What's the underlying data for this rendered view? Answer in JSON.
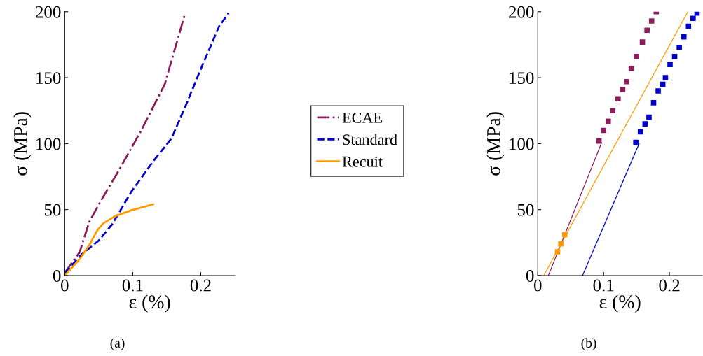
{
  "chart_data": [
    {
      "type": "line",
      "xlabel": "ε (%)",
      "ylabel": "σ (MPa)",
      "xlim": [
        0,
        0.25
      ],
      "ylim": [
        0,
        200
      ],
      "xticks": [
        0,
        0.1,
        0.2
      ],
      "yticks": [
        0,
        50,
        100,
        150,
        200
      ],
      "grid": false,
      "legend": "right",
      "annotations": [
        "(a)"
      ],
      "series": [
        {
          "name": "ECAE",
          "color": "#8b1f5e",
          "line_style": "dashdot",
          "x": [
            0,
            0.022,
            0.036,
            0.053,
            0.081,
            0.112,
            0.147,
            0.176
          ],
          "values": [
            2,
            17.7,
            40.6,
            56.5,
            81,
            109.5,
            145,
            197
          ]
        },
        {
          "name": "Standard",
          "color": "#0000cc",
          "line_style": "dashed",
          "x": [
            0,
            0.025,
            0.05,
            0.07,
            0.098,
            0.13,
            0.157,
            0.178,
            0.202,
            0.227,
            0.241
          ],
          "values": [
            2,
            16,
            26.5,
            39,
            63.6,
            86.5,
            104,
            129,
            159,
            189,
            199
          ]
        },
        {
          "name": "Recuit",
          "color": "#ff9900",
          "line_style": "solid",
          "x": [
            0,
            0.022,
            0.036,
            0.048,
            0.057,
            0.074,
            0.098,
            0.13
          ],
          "values": [
            0,
            12.4,
            23,
            34.4,
            39.7,
            45,
            49.5,
            54
          ]
        }
      ]
    },
    {
      "type": "line",
      "xlabel": "ε (%)",
      "ylabel": "σ (MPa)",
      "xlim": [
        0,
        0.25
      ],
      "ylim": [
        0,
        200
      ],
      "xticks": [
        0,
        0.1,
        0.2
      ],
      "yticks": [
        0,
        50,
        100,
        150,
        200
      ],
      "grid": false,
      "annotations": [
        "(b)"
      ],
      "series": [
        {
          "color": "#8b1f5e",
          "type": "scatter",
          "marker": "square",
          "x": [
            0.093,
            0.1,
            0.107,
            0.114,
            0.122,
            0.129,
            0.135,
            0.142,
            0.15,
            0.159,
            0.166,
            0.173,
            0.18
          ],
          "values": [
            102,
            110,
            117,
            125,
            134,
            141,
            147,
            157,
            166,
            177,
            186,
            193,
            200
          ]
        },
        {
          "color": "#0000cc",
          "type": "scatter",
          "marker": "square",
          "x": [
            0.149,
            0.156,
            0.163,
            0.169,
            0.176,
            0.183,
            0.19,
            0.194,
            0.201,
            0.208,
            0.215,
            0.222,
            0.229,
            0.236,
            0.242
          ],
          "values": [
            101,
            109,
            115,
            120,
            131,
            140,
            145,
            150,
            160,
            166,
            173,
            181,
            189,
            195,
            199
          ]
        },
        {
          "color": "#ff9900",
          "type": "scatter",
          "marker": "square",
          "x": [
            0.03,
            0.035,
            0.041
          ],
          "values": [
            18,
            24,
            31
          ]
        },
        {
          "color": "#8b1f5e",
          "type": "line",
          "line_style": "solid",
          "x": [
            0.016,
            0.097
          ],
          "values": [
            0,
            100.7
          ]
        },
        {
          "color": "#0000cc",
          "type": "line",
          "line_style": "solid",
          "x": [
            0.068,
            0.154
          ],
          "values": [
            0,
            100
          ]
        },
        {
          "color": "#ff9900",
          "type": "line",
          "line_style": "solid",
          "x": [
            0.009,
            0.228
          ],
          "values": [
            0,
            200
          ]
        }
      ]
    }
  ]
}
